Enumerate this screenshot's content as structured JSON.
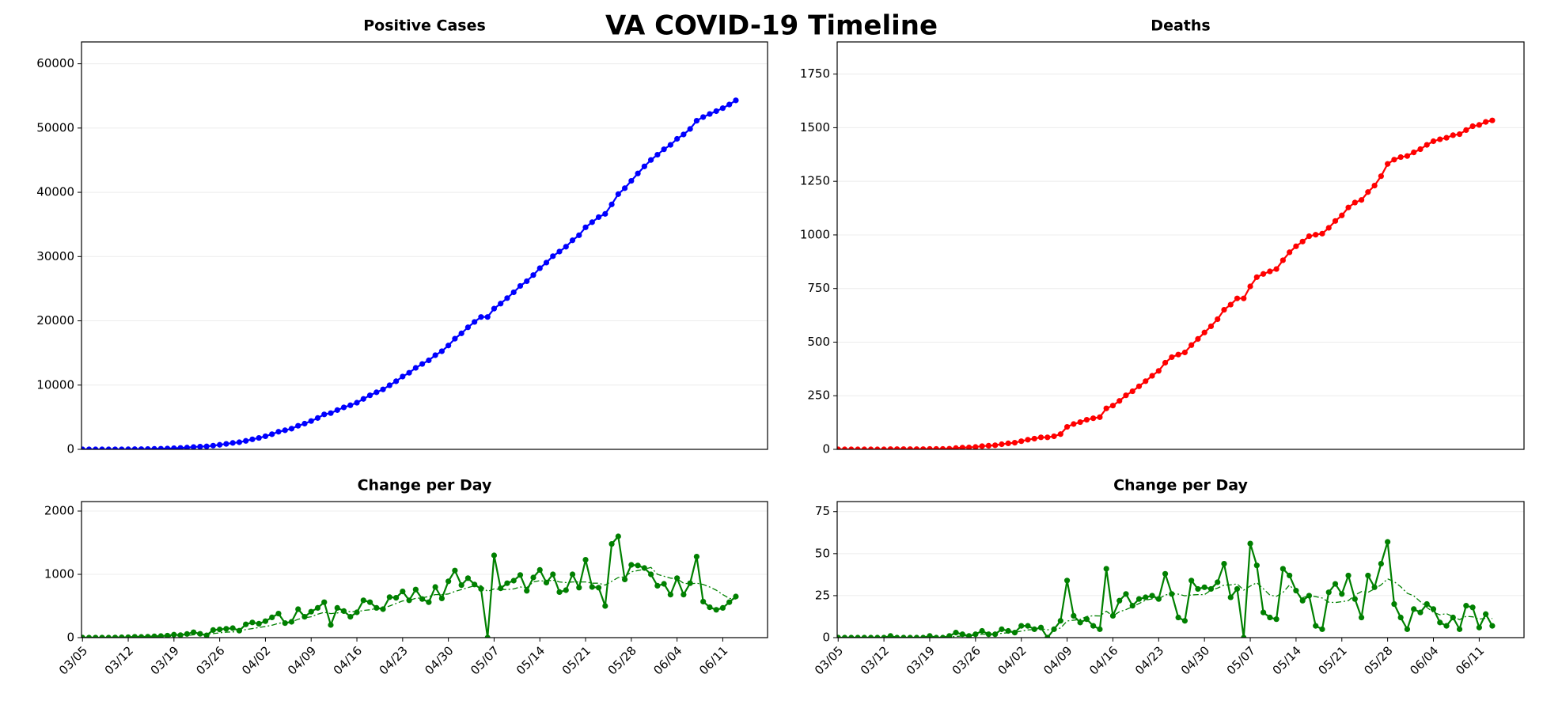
{
  "title": "VA COVID-19 Timeline",
  "chart_data": [
    {
      "type": "line",
      "title": "Positive Cases",
      "x": [
        "03/05",
        "03/06",
        "03/07",
        "03/08",
        "03/09",
        "03/10",
        "03/11",
        "03/12",
        "03/13",
        "03/14",
        "03/15",
        "03/16",
        "03/17",
        "03/18",
        "03/19",
        "03/20",
        "03/21",
        "03/22",
        "03/23",
        "03/24",
        "03/25",
        "03/26",
        "03/27",
        "03/28",
        "03/29",
        "03/30",
        "03/31",
        "04/01",
        "04/02",
        "04/03",
        "04/04",
        "04/05",
        "04/06",
        "04/07",
        "04/08",
        "04/09",
        "04/10",
        "04/11",
        "04/12",
        "04/13",
        "04/14",
        "04/15",
        "04/16",
        "04/17",
        "04/18",
        "04/19",
        "04/20",
        "04/21",
        "04/22",
        "04/23",
        "04/24",
        "04/25",
        "04/26",
        "04/27",
        "04/28",
        "04/29",
        "04/30",
        "05/01",
        "05/02",
        "05/03",
        "05/04",
        "05/05",
        "05/06",
        "05/07",
        "05/08",
        "05/09",
        "05/10",
        "05/11",
        "05/12",
        "05/13",
        "05/14",
        "05/15",
        "05/16",
        "05/17",
        "05/18",
        "05/19",
        "05/20",
        "05/21",
        "05/22",
        "05/23",
        "05/24",
        "05/25",
        "05/26",
        "05/27",
        "05/28",
        "05/29",
        "05/30",
        "05/31",
        "06/01",
        "06/02",
        "06/03",
        "06/04",
        "06/05",
        "06/06",
        "06/07",
        "06/08",
        "06/09",
        "06/10",
        "06/11",
        "06/12",
        "06/13"
      ],
      "ylim": [
        0,
        63400
      ],
      "yticks": [
        0,
        10000,
        20000,
        30000,
        40000,
        50000,
        60000
      ],
      "grid": true,
      "series": [
        {
          "color": "#0000ff",
          "markers": true,
          "style": "solid",
          "values": [
            0,
            0,
            1,
            2,
            2,
            4,
            9,
            16,
            29,
            40,
            55,
            75,
            100,
            132,
            179,
            219,
            277,
            362,
            422,
            459,
            579,
            709,
            849,
            999,
            1109,
            1319,
            1559,
            1779,
            2039,
            2359,
            2739,
            2969,
            3219,
            3669,
            3999,
            4409,
            4879,
            5439,
            5639,
            6109,
            6529,
            6859,
            7259,
            7849,
            8409,
            8879,
            9329,
            9969,
            10599,
            11329,
            11919,
            12679,
            13289,
            13849,
            14649,
            15269,
            16159,
            17219,
            18049,
            18989,
            19829,
            20599,
            20599,
            21899,
            22679,
            23539,
            24439,
            25429,
            26169,
            27119,
            28189,
            29059,
            30059,
            30779,
            31529,
            32529,
            33319,
            34549,
            35349,
            36139,
            36639,
            38119,
            39719,
            40639,
            41789,
            42929,
            44029,
            45029,
            45849,
            46699,
            47379,
            48319,
            48999,
            49859,
            51139,
            51709,
            52189,
            52629,
            53099,
            53659,
            54309
          ]
        }
      ]
    },
    {
      "type": "line",
      "title": "Deaths",
      "x": [
        "03/05",
        "03/06",
        "03/07",
        "03/08",
        "03/09",
        "03/10",
        "03/11",
        "03/12",
        "03/13",
        "03/14",
        "03/15",
        "03/16",
        "03/17",
        "03/18",
        "03/19",
        "03/20",
        "03/21",
        "03/22",
        "03/23",
        "03/24",
        "03/25",
        "03/26",
        "03/27",
        "03/28",
        "03/29",
        "03/30",
        "03/31",
        "04/01",
        "04/02",
        "04/03",
        "04/04",
        "04/05",
        "04/06",
        "04/07",
        "04/08",
        "04/09",
        "04/10",
        "04/11",
        "04/12",
        "04/13",
        "04/14",
        "04/15",
        "04/16",
        "04/17",
        "04/18",
        "04/19",
        "04/20",
        "04/21",
        "04/22",
        "04/23",
        "04/24",
        "04/25",
        "04/26",
        "04/27",
        "04/28",
        "04/29",
        "04/30",
        "05/01",
        "05/02",
        "05/03",
        "05/04",
        "05/05",
        "05/06",
        "05/07",
        "05/08",
        "05/09",
        "05/10",
        "05/11",
        "05/12",
        "05/13",
        "05/14",
        "05/15",
        "05/16",
        "05/17",
        "05/18",
        "05/19",
        "05/20",
        "05/21",
        "05/22",
        "05/23",
        "05/24",
        "05/25",
        "05/26",
        "05/27",
        "05/28",
        "05/29",
        "05/30",
        "05/31",
        "06/01",
        "06/02",
        "06/03",
        "06/04",
        "06/05",
        "06/06",
        "06/07",
        "06/08",
        "06/09",
        "06/10",
        "06/11",
        "06/12",
        "06/13"
      ],
      "ylim": [
        0,
        1900
      ],
      "yticks": [
        0,
        250,
        500,
        750,
        1000,
        1250,
        1500,
        1750
      ],
      "grid": true,
      "series": [
        {
          "color": "#ff0000",
          "markers": true,
          "style": "solid",
          "values": [
            0,
            0,
            0,
            0,
            0,
            0,
            0,
            0,
            1,
            1,
            1,
            1,
            1,
            1,
            2,
            2,
            2,
            3,
            6,
            8,
            9,
            11,
            15,
            17,
            19,
            24,
            28,
            31,
            38,
            45,
            50,
            56,
            56,
            61,
            71,
            105,
            118,
            127,
            138,
            145,
            150,
            191,
            204,
            226,
            252,
            271,
            294,
            318,
            343,
            366,
            404,
            430,
            442,
            452,
            486,
            515,
            545,
            574,
            607,
            651,
            675,
            704,
            704,
            760,
            803,
            818,
            830,
            841,
            882,
            919,
            947,
            969,
            994,
            1001,
            1006,
            1033,
            1065,
            1091,
            1128,
            1151,
            1163,
            1200,
            1230,
            1274,
            1331,
            1351,
            1363,
            1368,
            1385,
            1400,
            1420,
            1437,
            1446,
            1453,
            1465,
            1470,
            1489,
            1507,
            1513,
            1527,
            1534
          ]
        }
      ]
    },
    {
      "type": "line",
      "title": "Change per Day",
      "x": [
        "03/05",
        "03/06",
        "03/07",
        "03/08",
        "03/09",
        "03/10",
        "03/11",
        "03/12",
        "03/13",
        "03/14",
        "03/15",
        "03/16",
        "03/17",
        "03/18",
        "03/19",
        "03/20",
        "03/21",
        "03/22",
        "03/23",
        "03/24",
        "03/25",
        "03/26",
        "03/27",
        "03/28",
        "03/29",
        "03/30",
        "03/31",
        "04/01",
        "04/02",
        "04/03",
        "04/04",
        "04/05",
        "04/06",
        "04/07",
        "04/08",
        "04/09",
        "04/10",
        "04/11",
        "04/12",
        "04/13",
        "04/14",
        "04/15",
        "04/16",
        "04/17",
        "04/18",
        "04/19",
        "04/20",
        "04/21",
        "04/22",
        "04/23",
        "04/24",
        "04/25",
        "04/26",
        "04/27",
        "04/28",
        "04/29",
        "04/30",
        "05/01",
        "05/02",
        "05/03",
        "05/04",
        "05/05",
        "05/06",
        "05/07",
        "05/08",
        "05/09",
        "05/10",
        "05/11",
        "05/12",
        "05/13",
        "05/14",
        "05/15",
        "05/16",
        "05/17",
        "05/18",
        "05/19",
        "05/20",
        "05/21",
        "05/22",
        "05/23",
        "05/24",
        "05/25",
        "05/26",
        "05/27",
        "05/28",
        "05/29",
        "05/30",
        "05/31",
        "06/01",
        "06/02",
        "06/03",
        "06/04",
        "06/05",
        "06/06",
        "06/07",
        "06/08",
        "06/09",
        "06/10",
        "06/11",
        "06/12",
        "06/13"
      ],
      "xticks": [
        "03/05",
        "03/12",
        "03/19",
        "03/26",
        "04/02",
        "04/09",
        "04/16",
        "04/23",
        "04/30",
        "05/07",
        "05/14",
        "05/21",
        "05/28",
        "06/04",
        "06/11"
      ],
      "ylim": [
        0,
        2150
      ],
      "yticks": [
        0,
        1000,
        2000
      ],
      "grid": true,
      "series": [
        {
          "color": "#008000",
          "markers": true,
          "style": "solid",
          "values": [
            0,
            0,
            1,
            1,
            0,
            2,
            5,
            7,
            13,
            11,
            15,
            20,
            25,
            32,
            47,
            40,
            58,
            85,
            60,
            37,
            120,
            130,
            140,
            150,
            110,
            210,
            240,
            220,
            260,
            320,
            380,
            230,
            250,
            450,
            330,
            410,
            470,
            560,
            200,
            470,
            420,
            330,
            400,
            590,
            560,
            470,
            450,
            640,
            630,
            730,
            590,
            760,
            610,
            560,
            800,
            620,
            890,
            1060,
            830,
            940,
            840,
            770,
            0,
            1300,
            780,
            860,
            900,
            990,
            740,
            950,
            1070,
            870,
            1000,
            720,
            750,
            1000,
            790,
            1230,
            800,
            790,
            500,
            1480,
            1600,
            920,
            1150,
            1140,
            1100,
            1000,
            820,
            850,
            680,
            940,
            680,
            860,
            1280,
            570,
            480,
            440,
            470,
            560,
            650
          ]
        },
        {
          "color": "#008000",
          "markers": false,
          "style": "dashed",
          "values": [
            0,
            0,
            0,
            0,
            0,
            1,
            1,
            2,
            4,
            5,
            7,
            10,
            13,
            17,
            23,
            27,
            34,
            44,
            50,
            52,
            64,
            76,
            87,
            90,
            100,
            128,
            143,
            160,
            176,
            196,
            226,
            240,
            250,
            290,
            313,
            330,
            370,
            400,
            380,
            390,
            410,
            410,
            410,
            430,
            440,
            460,
            470,
            500,
            540,
            580,
            590,
            620,
            630,
            650,
            680,
            680,
            690,
            730,
            760,
            790,
            820,
            820,
            730,
            770,
            760,
            760,
            770,
            800,
            790,
            880,
            900,
            890,
            910,
            880,
            870,
            880,
            880,
            880,
            860,
            860,
            830,
            890,
            950,
            960,
            1040,
            1060,
            1080,
            1110,
            1000,
            970,
            940,
            930,
            860,
            850,
            860,
            840,
            800,
            750,
            680,
            620,
            610
          ]
        }
      ]
    },
    {
      "type": "line",
      "title": "Change per Day",
      "x": [
        "03/05",
        "03/06",
        "03/07",
        "03/08",
        "03/09",
        "03/10",
        "03/11",
        "03/12",
        "03/13",
        "03/14",
        "03/15",
        "03/16",
        "03/17",
        "03/18",
        "03/19",
        "03/20",
        "03/21",
        "03/22",
        "03/23",
        "03/24",
        "03/25",
        "03/26",
        "03/27",
        "03/28",
        "03/29",
        "03/30",
        "03/31",
        "04/01",
        "04/02",
        "04/03",
        "04/04",
        "04/05",
        "04/06",
        "04/07",
        "04/08",
        "04/09",
        "04/10",
        "04/11",
        "04/12",
        "04/13",
        "04/14",
        "04/15",
        "04/16",
        "04/17",
        "04/18",
        "04/19",
        "04/20",
        "04/21",
        "04/22",
        "04/23",
        "04/24",
        "04/25",
        "04/26",
        "04/27",
        "04/28",
        "04/29",
        "04/30",
        "05/01",
        "05/02",
        "05/03",
        "05/04",
        "05/05",
        "05/06",
        "05/07",
        "05/08",
        "05/09",
        "05/10",
        "05/11",
        "05/12",
        "05/13",
        "05/14",
        "05/15",
        "05/16",
        "05/17",
        "05/18",
        "05/19",
        "05/20",
        "05/21",
        "05/22",
        "05/23",
        "05/24",
        "05/25",
        "05/26",
        "05/27",
        "05/28",
        "05/29",
        "05/30",
        "05/31",
        "06/01",
        "06/02",
        "06/03",
        "06/04",
        "06/05",
        "06/06",
        "06/07",
        "06/08",
        "06/09",
        "06/10",
        "06/11",
        "06/12",
        "06/13"
      ],
      "xticks": [
        "03/05",
        "03/12",
        "03/19",
        "03/26",
        "04/02",
        "04/09",
        "04/16",
        "04/23",
        "04/30",
        "05/07",
        "05/14",
        "05/21",
        "05/28",
        "06/04",
        "06/11"
      ],
      "ylim": [
        0,
        81
      ],
      "yticks": [
        0,
        25,
        50,
        75
      ],
      "grid": true,
      "series": [
        {
          "color": "#008000",
          "markers": true,
          "style": "solid",
          "values": [
            0,
            0,
            0,
            0,
            0,
            0,
            0,
            0,
            1,
            0,
            0,
            0,
            0,
            0,
            1,
            0,
            0,
            1,
            3,
            2,
            1,
            2,
            4,
            2,
            2,
            5,
            4,
            3,
            7,
            7,
            5,
            6,
            0,
            5,
            10,
            34,
            13,
            9,
            11,
            7,
            5,
            41,
            13,
            22,
            26,
            19,
            23,
            24,
            25,
            23,
            38,
            26,
            12,
            10,
            34,
            29,
            30,
            29,
            33,
            44,
            24,
            29,
            0,
            56,
            43,
            15,
            12,
            11,
            41,
            37,
            28,
            22,
            25,
            7,
            5,
            27,
            32,
            26,
            37,
            23,
            12,
            37,
            30,
            44,
            57,
            20,
            12,
            5,
            17,
            15,
            20,
            17,
            9,
            7,
            12,
            5,
            19,
            18,
            6,
            14,
            7
          ]
        },
        {
          "color": "#008000",
          "markers": false,
          "style": "dashed",
          "values": [
            0,
            0,
            0,
            0,
            0,
            0,
            0,
            0,
            0,
            0,
            0,
            0,
            0,
            0,
            0.3,
            0.3,
            0.3,
            0.4,
            0.7,
            1,
            1.1,
            1.4,
            2,
            2,
            2.1,
            2.6,
            2.9,
            3.1,
            3.9,
            4.6,
            4.9,
            5.3,
            4.7,
            4.7,
            5.7,
            9.9,
            10.4,
            10.8,
            12.6,
            13,
            12.9,
            15.7,
            12.9,
            15.4,
            16.7,
            18.4,
            20.3,
            22.3,
            23.1,
            23.1,
            25.4,
            26.1,
            25.9,
            24.9,
            25.4,
            25.6,
            25.6,
            28.3,
            29.5,
            31.3,
            31.4,
            32,
            28.3,
            30.7,
            32.7,
            29.1,
            25.3,
            24.6,
            26.9,
            31.3,
            27,
            23.7,
            25.1,
            24.4,
            23.6,
            21.1,
            20.9,
            21.4,
            22,
            25.3,
            27.4,
            27,
            29,
            31.4,
            35,
            33.3,
            30.3,
            26.4,
            24.9,
            21.4,
            18,
            15.1,
            13.6,
            14.3,
            12.4,
            10.7,
            12.7,
            12.4,
            11,
            11.6,
            11.4
          ]
        }
      ]
    }
  ]
}
